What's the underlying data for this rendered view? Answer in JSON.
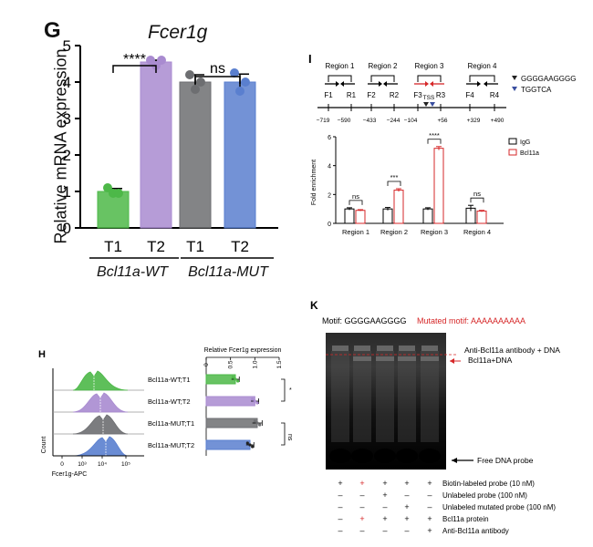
{
  "colors": {
    "wt_t1": "#4db848",
    "wt_t2": "#a98bd0",
    "mut_t1": "#6d6e71",
    "mut_t2": "#5a7fcf",
    "red": "#d62728"
  },
  "panel_g": {
    "letter": "G",
    "title": "Fcer1g",
    "ylabel": "Relative mRNA expression",
    "yticks": [
      "0",
      "1",
      "2",
      "3",
      "4",
      "5"
    ],
    "sig_wt": "****",
    "sig_mut": "ns",
    "group_wt": "Bcl11a-WT",
    "group_mut": "Bcl11a-MUT"
  },
  "panel_i": {
    "letter": "I",
    "regions": [
      "Region 1",
      "Region 2",
      "Region 3",
      "Region 4"
    ],
    "primers": [
      "F1",
      "R1",
      "F2",
      "R2",
      "F3",
      "R3",
      "F4",
      "R4"
    ],
    "positions": [
      "−719",
      "−590",
      "−433",
      "−244",
      "−104",
      "TSS",
      "+56",
      "+329",
      "+490"
    ],
    "motif1": "GGGGAAGGGG",
    "motif2": "TGGTCA",
    "legend": [
      "IgG",
      "Bcl11a"
    ],
    "sig": [
      "ns",
      "***",
      "****",
      "ns"
    ]
  },
  "panel_h": {
    "letter": "H",
    "xtitle": "Relative Fcer1g expression",
    "xticks": [
      "0",
      "0.5",
      "1.0",
      "1.5"
    ],
    "rows": [
      "Bcl11a-WT;T1",
      "Bcl11a-WT;T2",
      "Bcl11a-MUT;T1",
      "Bcl11a-MUT;T2"
    ],
    "sig": [
      "*",
      "ns"
    ],
    "hist_ylabel": "Count",
    "hist_xlabel": "Fcer1g-APC",
    "hist_ticks": [
      "0",
      "10³",
      "10⁴",
      "10⁵"
    ]
  },
  "panel_k": {
    "letter": "K",
    "motif_label": "Motif: GGGGAAGGGG",
    "mutated_label": "Mutated motif: AAAAAAAAAA",
    "band1": "Anti-Bcl11a antibody + DNA",
    "band2": "Bcl11a+DNA",
    "free": "Free DNA probe",
    "row_labels": [
      "Biotin-labeled probe (10 nM)",
      "Unlabeled probe (100 nM)",
      "Unlabeled mutated probe (100 nM)",
      "Bcl11a protein",
      "Anti-Bcl11a antibody"
    ],
    "lane_signs": [
      [
        "+",
        "+",
        "+",
        "+",
        "+"
      ],
      [
        "–",
        "–",
        "+",
        "–",
        "–"
      ],
      [
        "–",
        "–",
        "–",
        "+",
        "–"
      ],
      [
        "–",
        "+",
        "+",
        "+",
        "+"
      ],
      [
        "–",
        "–",
        "–",
        "–",
        "+"
      ]
    ]
  },
  "chart_data": [
    {
      "type": "bar",
      "title": "Fcer1g",
      "ylabel": "Relative mRNA expression",
      "ylim": [
        0,
        5
      ],
      "categories": [
        "T1",
        "T2",
        "T1",
        "T2"
      ],
      "groups": [
        "Bcl11a-WT",
        "Bcl11a-WT",
        "Bcl11a-MUT",
        "Bcl11a-MUT"
      ],
      "values": [
        1.0,
        4.55,
        4.0,
        4.0
      ],
      "errors": [
        0.08,
        0.05,
        0.2,
        0.22
      ],
      "points": [
        [
          1.1,
          0.95,
          0.95
        ],
        [
          4.6,
          4.45,
          4.6
        ],
        [
          4.2,
          3.8,
          4.0
        ],
        [
          4.25,
          3.75,
          4.0
        ]
      ],
      "significance": [
        "****",
        "ns"
      ]
    },
    {
      "type": "bar",
      "title": "",
      "ylabel": "Fold enrichment",
      "ylim": [
        0,
        6
      ],
      "yticks": [
        0,
        2,
        4,
        6
      ],
      "categories": [
        "Region 1",
        "Region 2",
        "Region 3",
        "Region 4"
      ],
      "series": [
        {
          "name": "IgG",
          "values": [
            1.0,
            1.0,
            1.0,
            1.05
          ],
          "errors": [
            0.08,
            0.1,
            0.08,
            0.2
          ]
        },
        {
          "name": "Bcl11a",
          "values": [
            0.9,
            2.3,
            5.2,
            0.85
          ],
          "errors": [
            0.05,
            0.1,
            0.12,
            0.05
          ]
        }
      ],
      "significance": [
        "ns",
        "***",
        "****",
        "ns"
      ]
    },
    {
      "type": "bar",
      "orientation": "horizontal",
      "title": "Relative Fcer1g expression",
      "xlim": [
        0,
        1.5
      ],
      "categories": [
        "Bcl11a-WT;T1",
        "Bcl11a-WT;T2",
        "Bcl11a-MUT;T1",
        "Bcl11a-MUT;T2"
      ],
      "values": [
        0.6,
        1.0,
        1.05,
        0.9
      ],
      "errors": [
        0.08,
        0.08,
        0.1,
        0.08
      ],
      "significance": [
        "*",
        "ns"
      ]
    }
  ]
}
